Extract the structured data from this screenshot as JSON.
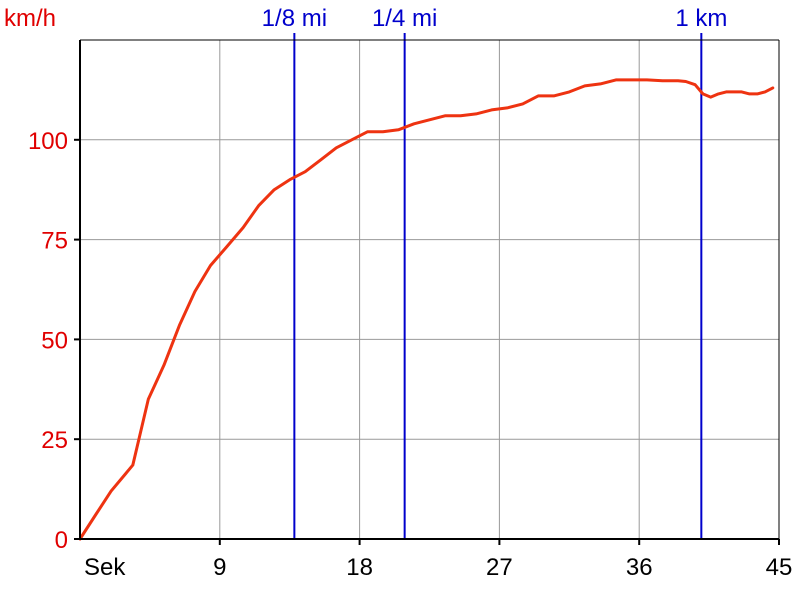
{
  "chart_data": {
    "type": "line",
    "ylabel": "km/h",
    "xlabel": "Sek",
    "xlim": [
      0,
      45
    ],
    "ylim": [
      0,
      125
    ],
    "x_ticks": [
      9,
      18,
      27,
      36,
      45
    ],
    "y_ticks": [
      0,
      25,
      50,
      75,
      100
    ],
    "grid": true,
    "colors": {
      "series": "#ee3311",
      "markers": "#0000cc",
      "grid": "#999999",
      "axis": "#000000",
      "y_tick_text": "#e00000"
    },
    "markers": [
      {
        "label": "1/8 mi",
        "x": 13.8
      },
      {
        "label": "1/4 mi",
        "x": 20.9
      },
      {
        "label": "1 km",
        "x": 40.0
      }
    ],
    "series": [
      {
        "x": [
          0,
          1,
          2,
          3.4,
          4.4,
          5.4,
          6.4,
          7.4,
          8.4,
          9.4,
          10.5,
          11.5,
          12.5,
          13.5,
          14.5,
          15.5,
          16.5,
          17.5,
          18.5,
          19.5,
          20.5,
          21.5,
          22.5,
          23.5,
          24.5,
          25.5,
          26.5,
          27.5,
          28.5,
          29.5,
          30.5,
          31.5,
          32.5,
          33.5,
          34.5,
          35.5,
          36.5,
          37.5,
          38.5,
          39.0,
          39.6,
          40.1,
          40.6,
          41.1,
          41.6,
          42.1,
          42.6,
          43.1,
          43.6,
          44.1,
          44.6
        ],
        "values": [
          0,
          6,
          12,
          18.5,
          35,
          43.5,
          53.5,
          62,
          68.5,
          73,
          78,
          83.5,
          87.5,
          90,
          92,
          95,
          98,
          100,
          102,
          102,
          102.5,
          104,
          105,
          106,
          106,
          106.5,
          107.5,
          108,
          109,
          111,
          111,
          112,
          113.5,
          114,
          115,
          115,
          115,
          114.8,
          114.8,
          114.6,
          113.8,
          111.5,
          110.7,
          111.5,
          112,
          112,
          112,
          111.5,
          111.5,
          112,
          113
        ]
      }
    ]
  }
}
